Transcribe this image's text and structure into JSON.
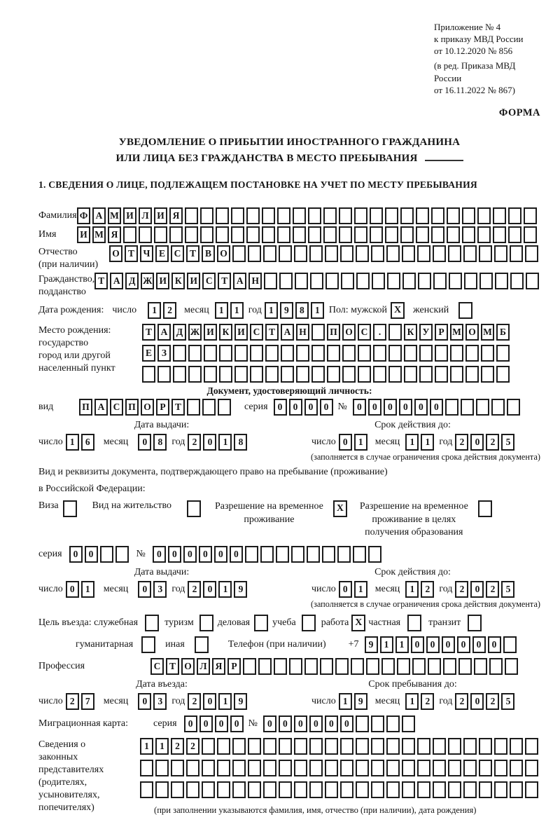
{
  "doc": {
    "appendix": [
      "Приложение № 4",
      "к приказу МВД России",
      "от 10.12.2020 № 856"
    ],
    "revision": [
      "(в ред. Приказа МВД России",
      "от 16.11.2022 № 867)"
    ],
    "forma": "ФОРМА",
    "title1": "УВЕДОМЛЕНИЕ О ПРИБЫТИИ ИНОСТРАННОГО ГРАЖДАНИНА",
    "title2": "ИЛИ ЛИЦА БЕЗ ГРАЖДАНСТВА В МЕСТО ПРЕБЫВАНИЯ",
    "section1": "1. СВЕДЕНИЯ О ЛИЦЕ, ПОДЛЕЖАЩЕМ ПОСТАНОВКЕ НА УЧЕТ ПО МЕСТУ ПРЕБЫВАНИЯ"
  },
  "labels": {
    "surname": "Фамилия",
    "name": "Имя",
    "patronymic": "Отчество",
    "if_any": "(при наличии)",
    "citizenship1": "Гражданство,",
    "citizenship2": "подданство",
    "birthdate": "Дата рождения:",
    "day": "число",
    "month": "месяц",
    "year": "год",
    "sex": "Пол: мужской",
    "female": "женский",
    "birthplace": "Место рождения:",
    "state": "государство",
    "city1": "город или другой",
    "city2": "населенный пункт",
    "id_doc_heading": "Документ, удостоверяющий личность:",
    "kind": "вид",
    "series": "серия",
    "number": "№",
    "issue_date": "Дата выдачи:",
    "valid_until": "Срок действия до:",
    "valid_note": "(заполняется в случае ограничения срока действия документа)",
    "resid_line1": "Вид и реквизиты документа, подтверждающего право на пребывание (проживание)",
    "resid_line2": "в Российской Федерации:",
    "visa": "Виза",
    "residence_permit": "Вид на жительство",
    "temp_res1": "Разрешение на временное",
    "temp_res2": "проживание",
    "temp_res_edu1": "Разрешение на временное",
    "temp_res_edu2": "проживание в целях",
    "temp_res_edu3": "получения образования",
    "purpose": "Цель въезда: служебная",
    "tourism": "туризм",
    "business": "деловая",
    "study": "учеба",
    "work": "работа",
    "private": "частная",
    "transit": "транзит",
    "humanitarian": "гуманитарная",
    "other": "иная",
    "phone": "Телефон (при наличии)",
    "plus7": "+7",
    "profession": "Профессия",
    "entry_date": "Дата въезда:",
    "stay_until": "Срок пребывания до:",
    "migration_card": "Миграционная карта:",
    "repr1": "Сведения о",
    "repr2": "законных",
    "repr3": "представителях",
    "repr4": "(родителях,",
    "repr5": "усыновителях,",
    "repr6": "попечителях)",
    "repr_note": "(при заполнении указываются фамилия, имя, отчество (при наличии), дата рождения)"
  },
  "fields": {
    "surname": {
      "chars": [
        "Ф",
        "А",
        "М",
        "И",
        "Л",
        "И",
        "Я"
      ],
      "total": 30
    },
    "given_name": {
      "chars": [
        "И",
        "М",
        "Я"
      ],
      "total": 30
    },
    "patronymic": {
      "chars": [
        "О",
        "Т",
        "Ч",
        "Е",
        "С",
        "Т",
        "В",
        "О"
      ],
      "total": 28
    },
    "citizenship": {
      "chars": [
        "Т",
        "А",
        "Д",
        "Ж",
        "И",
        "К",
        "И",
        "С",
        "Т",
        "А",
        "Н"
      ],
      "total": 29
    },
    "birth_day": {
      "chars": [
        "1",
        "2"
      ],
      "total": 2
    },
    "birth_month": {
      "chars": [
        "1",
        "1"
      ],
      "total": 2
    },
    "birth_year": {
      "chars": [
        "1",
        "9",
        "8",
        "1"
      ],
      "total": 4
    },
    "birthplace_row1": {
      "chars": [
        "Т",
        "А",
        "Д",
        "Ж",
        "И",
        "К",
        "И",
        "С",
        "Т",
        "А",
        "Н",
        "",
        "П",
        "О",
        "С",
        ".",
        "",
        "К",
        "У",
        "Р",
        "М",
        "О",
        "М",
        "Б"
      ],
      "total": 24
    },
    "birthplace_row2": {
      "chars": [
        "Е",
        "З"
      ],
      "total": 24
    },
    "birthplace_row3": {
      "chars": [],
      "total": 24
    },
    "id_doc_type": {
      "chars": [
        "П",
        "А",
        "С",
        "П",
        "О",
        "Р",
        "Т"
      ],
      "total": 10
    },
    "id_doc_series": {
      "chars": [
        "0",
        "0",
        "0",
        "0"
      ],
      "total": 4
    },
    "id_doc_number": {
      "chars": [
        "0",
        "0",
        "0",
        "0",
        "0",
        "0"
      ],
      "total": 11
    },
    "id_issue_day": {
      "chars": [
        "1",
        "6"
      ],
      "total": 2
    },
    "id_issue_month": {
      "chars": [
        "0",
        "8"
      ],
      "total": 2
    },
    "id_issue_year": {
      "chars": [
        "2",
        "0",
        "1",
        "8"
      ],
      "total": 4
    },
    "id_valid_day": {
      "chars": [
        "0",
        "1"
      ],
      "total": 2
    },
    "id_valid_month": {
      "chars": [
        "1",
        "1"
      ],
      "total": 2
    },
    "id_valid_year": {
      "chars": [
        "2",
        "0",
        "2",
        "5"
      ],
      "total": 4
    },
    "resid_series": {
      "chars": [
        "0",
        "0"
      ],
      "total": 4
    },
    "resid_number": {
      "chars": [
        "0",
        "0",
        "0",
        "0",
        "0",
        "0"
      ],
      "total": 15
    },
    "resid_issue_day": {
      "chars": [
        "0",
        "1"
      ],
      "total": 2
    },
    "resid_issue_month": {
      "chars": [
        "0",
        "3"
      ],
      "total": 2
    },
    "resid_issue_year": {
      "chars": [
        "2",
        "0",
        "1",
        "9"
      ],
      "total": 4
    },
    "resid_valid_day": {
      "chars": [
        "0",
        "1"
      ],
      "total": 2
    },
    "resid_valid_month": {
      "chars": [
        "1",
        "2"
      ],
      "total": 2
    },
    "resid_valid_year": {
      "chars": [
        "2",
        "0",
        "2",
        "5"
      ],
      "total": 4
    },
    "phone": {
      "chars": [
        "9",
        "1",
        "1",
        "0",
        "0",
        "0",
        "0",
        "0",
        "0"
      ],
      "total": 10
    },
    "profession": {
      "chars": [
        "С",
        "Т",
        "О",
        "Л",
        "Я",
        "Р"
      ],
      "total": 24
    },
    "entry_day": {
      "chars": [
        "2",
        "7"
      ],
      "total": 2
    },
    "entry_month": {
      "chars": [
        "0",
        "3"
      ],
      "total": 2
    },
    "entry_year": {
      "chars": [
        "2",
        "0",
        "1",
        "9"
      ],
      "total": 4
    },
    "stay_day": {
      "chars": [
        "1",
        "9"
      ],
      "total": 2
    },
    "stay_month": {
      "chars": [
        "1",
        "2"
      ],
      "total": 2
    },
    "stay_year": {
      "chars": [
        "2",
        "0",
        "2",
        "5"
      ],
      "total": 4
    },
    "migr_series": {
      "chars": [
        "0",
        "0",
        "0",
        "0"
      ],
      "total": 4
    },
    "migr_number": {
      "chars": [
        "0",
        "0",
        "0",
        "0",
        "0",
        "0"
      ],
      "total": 10
    },
    "repr_row1": {
      "chars": [
        "1",
        "1",
        "2",
        "2"
      ],
      "total": 26
    },
    "repr_row2": {
      "chars": [],
      "total": 26
    },
    "repr_row3": {
      "chars": [],
      "total": 26
    },
    "checks": {
      "male": "X",
      "female": "",
      "visa": "",
      "residence_permit": "",
      "temp_residence": "X",
      "temp_residence_edu": "",
      "purpose_official": "",
      "purpose_tourism": "",
      "purpose_business": "",
      "purpose_study": "",
      "purpose_work": "X",
      "purpose_private": "",
      "purpose_transit": "",
      "purpose_humanitarian": "",
      "purpose_other": ""
    }
  }
}
